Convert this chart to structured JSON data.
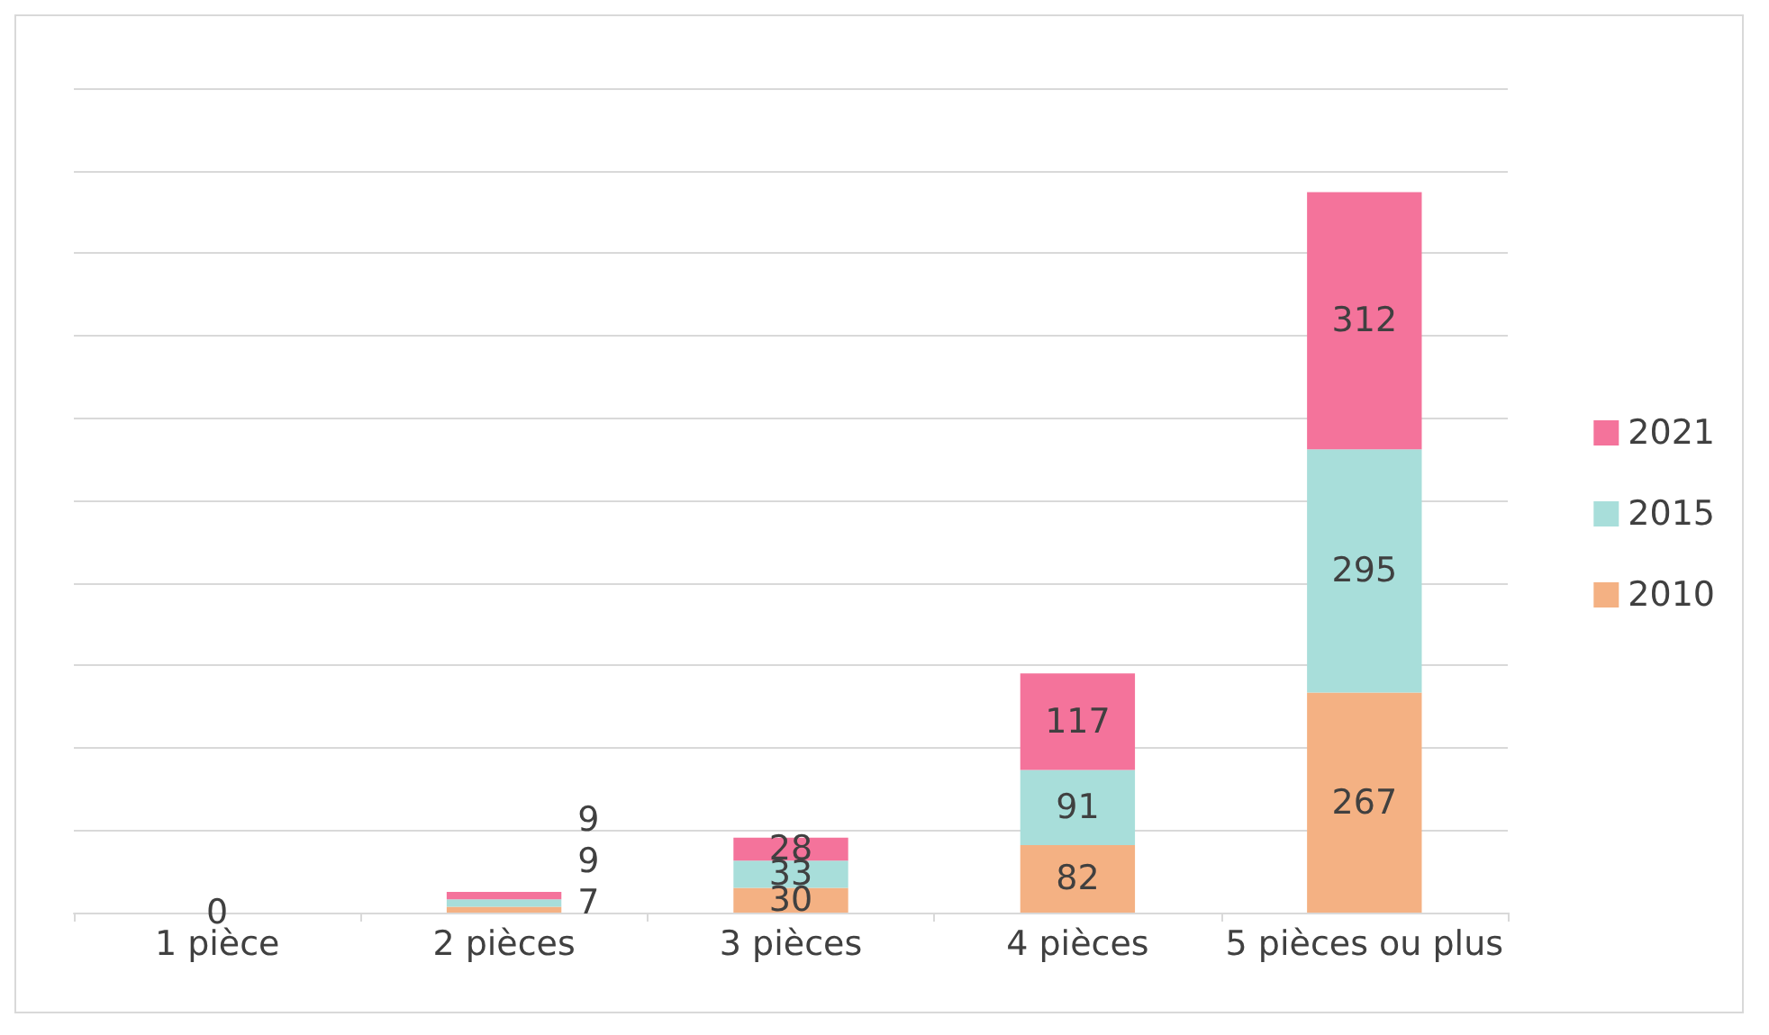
{
  "chart_data": {
    "type": "bar",
    "stacked": true,
    "categories": [
      "1 pièce",
      "2 pièces",
      "3 pièces",
      "4 pièces",
      "5 pièces ou plus"
    ],
    "series": [
      {
        "name": "2010",
        "color": "#f4b183",
        "values": [
          0,
          7,
          30,
          82,
          267
        ],
        "value_labels": [
          "0",
          "7",
          "30",
          "82",
          "267"
        ]
      },
      {
        "name": "2015",
        "color": "#a8deda",
        "values": [
          0,
          9,
          33,
          91,
          295
        ],
        "value_labels": [
          null,
          "9",
          "33",
          "91",
          "295"
        ]
      },
      {
        "name": "2021",
        "color": "#f4739b",
        "values": [
          0,
          9,
          28,
          117,
          312
        ],
        "value_labels": [
          null,
          "9",
          "28",
          "117",
          "312"
        ]
      }
    ],
    "ylim": [
      0,
      1000
    ],
    "yticks": [
      {
        "value": 0,
        "label": null
      },
      {
        "value": 100,
        "label": null
      },
      {
        "value": 200,
        "label": null
      },
      {
        "value": 300,
        "label": null
      },
      {
        "value": 400,
        "label": null
      },
      {
        "value": 500,
        "label": null
      },
      {
        "value": 600,
        "label": null
      },
      {
        "value": 700,
        "label": null
      },
      {
        "value": 800,
        "label": null
      },
      {
        "value": 900,
        "label": null
      },
      {
        "value": 1000,
        "label": null
      }
    ],
    "grid": "y",
    "legend": "right",
    "tick_labels": "x"
  }
}
